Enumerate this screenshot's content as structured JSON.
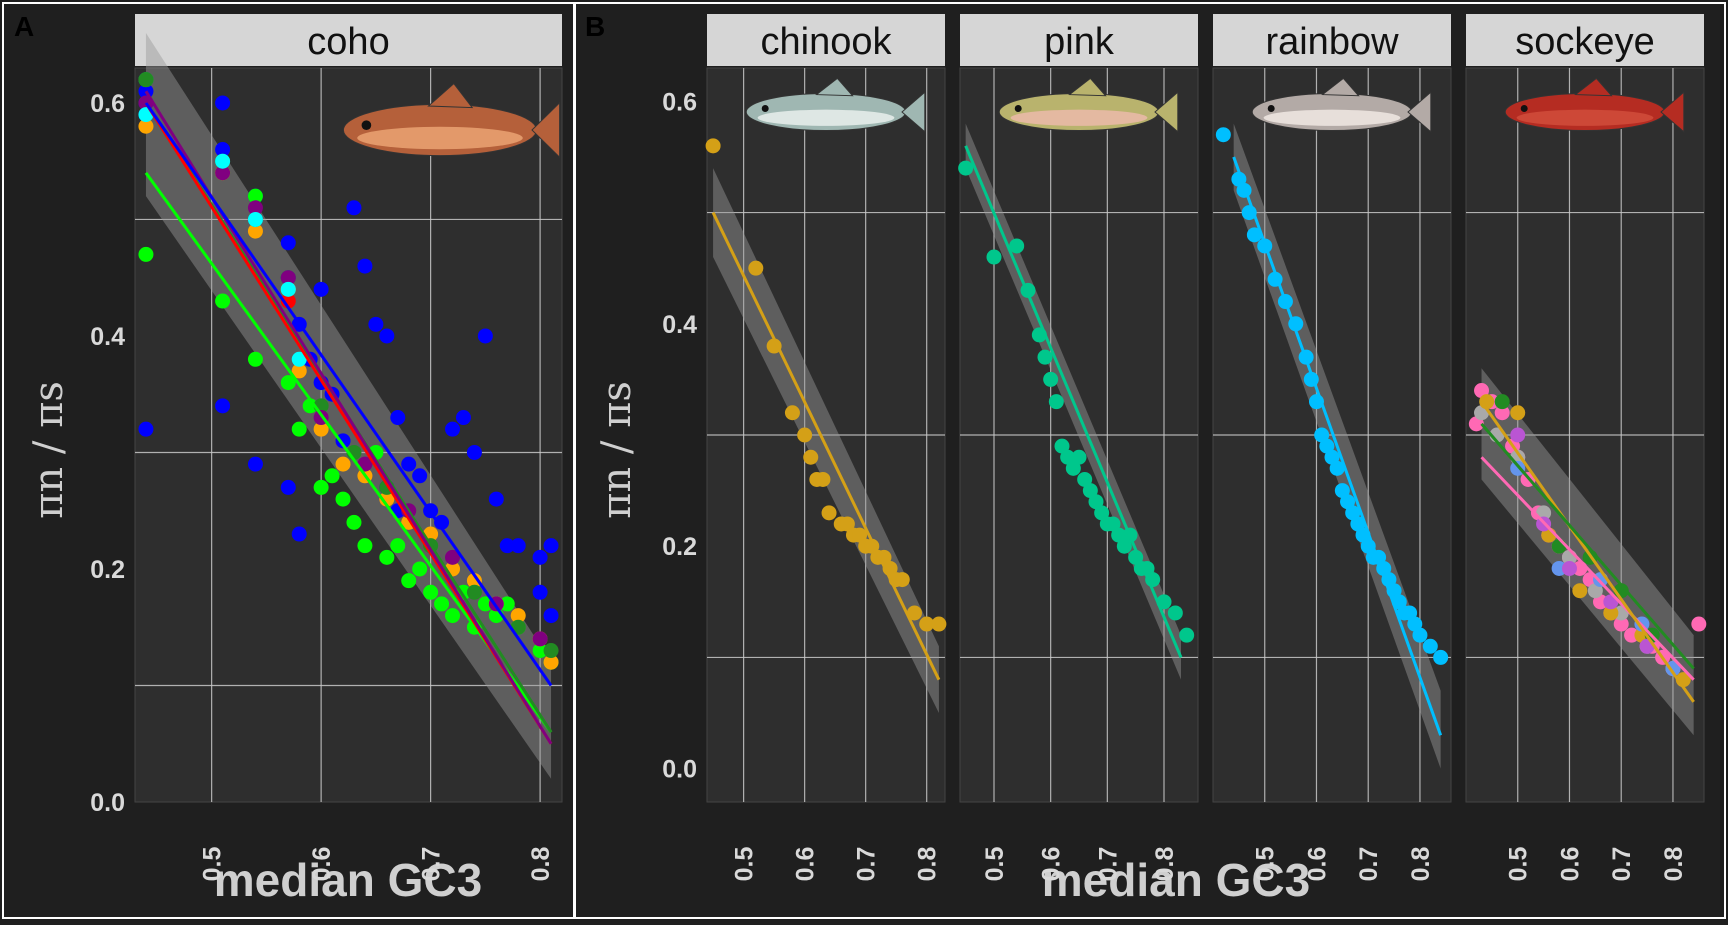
{
  "colors": {
    "background": "#2e2e2e",
    "outer": "#1f1f1f",
    "strip": "#d6d6d6",
    "grid": "#c8c8c8",
    "frame": "#ffffff"
  },
  "figure": {
    "panel_tags": [
      "A",
      "B"
    ],
    "x_title": "median GC3",
    "y_title": "πn / πs"
  },
  "chart_data": [
    {
      "type": "scatter",
      "panel": "A",
      "facet": "coho",
      "icon": "coho-salmon-icon",
      "xlabel": "median GC3",
      "ylabel": "πn / πs",
      "xlim": [
        0.43,
        0.82
      ],
      "ylim": [
        0.0,
        0.63
      ],
      "x_ticks": [
        0.5,
        0.6,
        0.7,
        0.8
      ],
      "y_ticks": [
        0.0,
        0.2,
        0.4,
        0.6
      ],
      "grid": true,
      "series": [
        {
          "color": "#0000ff",
          "x": [
            0.44,
            0.44,
            0.44,
            0.44,
            0.44,
            0.51,
            0.51,
            0.51,
            0.54,
            0.54,
            0.54,
            0.57,
            0.57,
            0.57,
            0.58,
            0.58,
            0.59,
            0.6,
            0.6,
            0.61,
            0.62,
            0.63,
            0.64,
            0.65,
            0.66,
            0.66,
            0.67,
            0.67,
            0.68,
            0.69,
            0.7,
            0.71,
            0.72,
            0.73,
            0.74,
            0.75,
            0.76,
            0.77,
            0.78,
            0.8,
            0.8,
            0.81,
            0.81
          ],
          "y": [
            0.32,
            0.59,
            0.6,
            0.61,
            0.62,
            0.34,
            0.6,
            0.56,
            0.29,
            0.5,
            0.52,
            0.27,
            0.45,
            0.48,
            0.23,
            0.41,
            0.38,
            0.36,
            0.44,
            0.35,
            0.31,
            0.51,
            0.46,
            0.41,
            0.4,
            0.27,
            0.33,
            0.25,
            0.29,
            0.28,
            0.25,
            0.24,
            0.32,
            0.33,
            0.3,
            0.4,
            0.26,
            0.22,
            0.22,
            0.21,
            0.18,
            0.16,
            0.22
          ]
        },
        {
          "color": "#00ff00",
          "x": [
            0.44,
            0.44,
            0.51,
            0.51,
            0.54,
            0.54,
            0.57,
            0.58,
            0.59,
            0.6,
            0.61,
            0.62,
            0.63,
            0.64,
            0.65,
            0.66,
            0.67,
            0.68,
            0.69,
            0.7,
            0.71,
            0.72,
            0.73,
            0.74,
            0.75,
            0.76,
            0.77,
            0.78,
            0.8,
            0.81
          ],
          "y": [
            0.47,
            0.62,
            0.43,
            0.54,
            0.38,
            0.52,
            0.36,
            0.32,
            0.34,
            0.27,
            0.28,
            0.26,
            0.24,
            0.22,
            0.3,
            0.21,
            0.22,
            0.19,
            0.2,
            0.18,
            0.17,
            0.16,
            0.18,
            0.15,
            0.17,
            0.16,
            0.17,
            0.15,
            0.13,
            0.12
          ]
        },
        {
          "color": "#ffa500",
          "x": [
            0.44,
            0.51,
            0.54,
            0.57,
            0.58,
            0.6,
            0.62,
            0.64,
            0.66,
            0.68,
            0.7,
            0.72,
            0.74,
            0.76,
            0.78,
            0.8,
            0.81
          ],
          "y": [
            0.58,
            0.54,
            0.49,
            0.44,
            0.37,
            0.32,
            0.29,
            0.28,
            0.26,
            0.24,
            0.23,
            0.2,
            0.19,
            0.17,
            0.16,
            0.14,
            0.12
          ]
        },
        {
          "color": "#ff0000",
          "x": [
            0.57
          ],
          "y": [
            0.43
          ]
        },
        {
          "color": "#228b22",
          "x": [
            0.44,
            0.51,
            0.54,
            0.57,
            0.6,
            0.63,
            0.66,
            0.7,
            0.74,
            0.78,
            0.81
          ],
          "y": [
            0.62,
            0.55,
            0.5,
            0.45,
            0.34,
            0.3,
            0.27,
            0.22,
            0.18,
            0.15,
            0.13
          ]
        },
        {
          "color": "#800080",
          "x": [
            0.44,
            0.51,
            0.54,
            0.57,
            0.6,
            0.64,
            0.68,
            0.72,
            0.76,
            0.8
          ],
          "y": [
            0.6,
            0.54,
            0.51,
            0.45,
            0.33,
            0.29,
            0.25,
            0.21,
            0.17,
            0.14
          ]
        },
        {
          "color": "#00ffff",
          "x": [
            0.44,
            0.51,
            0.54,
            0.57,
            0.58
          ],
          "y": [
            0.59,
            0.55,
            0.5,
            0.44,
            0.38
          ]
        }
      ],
      "fits": [
        {
          "color": "#00ff00",
          "x": [
            0.44,
            0.81
          ],
          "y": [
            0.54,
            0.06
          ]
        },
        {
          "color": "#228b22",
          "x": [
            0.44,
            0.81
          ],
          "y": [
            0.6,
            0.06
          ]
        },
        {
          "color": "#ff0000",
          "x": [
            0.44,
            0.81
          ],
          "y": [
            0.6,
            0.05
          ]
        },
        {
          "color": "#800080",
          "x": [
            0.44,
            0.81
          ],
          "y": [
            0.61,
            0.05
          ]
        },
        {
          "color": "#0000ff",
          "x": [
            0.44,
            0.81
          ],
          "y": [
            0.6,
            0.1
          ]
        }
      ],
      "ribbon": {
        "x": [
          0.44,
          0.81
        ],
        "upper": [
          0.66,
          0.12
        ],
        "lower": [
          0.52,
          0.02
        ]
      }
    },
    {
      "type": "scatter",
      "panel": "B",
      "facet": "chinook",
      "icon": "chinook-salmon-icon",
      "xlim": [
        0.44,
        0.83
      ],
      "ylim": [
        -0.03,
        0.63
      ],
      "x_ticks": [
        0.5,
        0.6,
        0.7,
        0.8
      ],
      "y_ticks": [
        0.0,
        0.2,
        0.4,
        0.6
      ],
      "grid": true,
      "series": [
        {
          "color": "#d4a017",
          "x": [
            0.45,
            0.52,
            0.55,
            0.58,
            0.6,
            0.61,
            0.62,
            0.63,
            0.64,
            0.66,
            0.67,
            0.68,
            0.69,
            0.7,
            0.71,
            0.72,
            0.73,
            0.74,
            0.75,
            0.76,
            0.78,
            0.8,
            0.82
          ],
          "y": [
            0.56,
            0.45,
            0.38,
            0.32,
            0.3,
            0.28,
            0.26,
            0.26,
            0.23,
            0.22,
            0.22,
            0.21,
            0.21,
            0.2,
            0.2,
            0.19,
            0.19,
            0.18,
            0.17,
            0.17,
            0.14,
            0.13,
            0.13
          ]
        }
      ],
      "fits": [
        {
          "color": "#d4a017",
          "x": [
            0.45,
            0.82
          ],
          "y": [
            0.5,
            0.08
          ]
        }
      ],
      "ribbon": {
        "x": [
          0.45,
          0.82
        ],
        "upper": [
          0.54,
          0.11
        ],
        "lower": [
          0.46,
          0.05
        ]
      }
    },
    {
      "type": "scatter",
      "panel": "B",
      "facet": "pink",
      "icon": "pink-salmon-icon",
      "xlim": [
        0.44,
        0.86
      ],
      "ylim": [
        -0.03,
        0.63
      ],
      "x_ticks": [
        0.5,
        0.6,
        0.7,
        0.8
      ],
      "y_ticks": [
        0.0,
        0.2,
        0.4,
        0.6
      ],
      "grid": true,
      "series": [
        {
          "color": "#00c78c",
          "x": [
            0.45,
            0.5,
            0.54,
            0.56,
            0.58,
            0.59,
            0.6,
            0.61,
            0.62,
            0.63,
            0.64,
            0.65,
            0.66,
            0.67,
            0.68,
            0.69,
            0.7,
            0.71,
            0.72,
            0.73,
            0.74,
            0.75,
            0.76,
            0.77,
            0.78,
            0.8,
            0.82,
            0.84
          ],
          "y": [
            0.54,
            0.46,
            0.47,
            0.43,
            0.39,
            0.37,
            0.35,
            0.33,
            0.29,
            0.28,
            0.27,
            0.28,
            0.26,
            0.25,
            0.24,
            0.23,
            0.22,
            0.22,
            0.21,
            0.2,
            0.21,
            0.19,
            0.18,
            0.18,
            0.17,
            0.15,
            0.14,
            0.12
          ]
        }
      ],
      "fits": [
        {
          "color": "#00c78c",
          "x": [
            0.45,
            0.83
          ],
          "y": [
            0.56,
            0.1
          ]
        }
      ],
      "ribbon": {
        "x": [
          0.45,
          0.83
        ],
        "upper": [
          0.58,
          0.12
        ],
        "lower": [
          0.54,
          0.08
        ]
      }
    },
    {
      "type": "scatter",
      "panel": "B",
      "facet": "rainbow",
      "icon": "rainbow-trout-icon",
      "xlim": [
        0.4,
        0.86
      ],
      "ylim": [
        -0.03,
        0.63
      ],
      "x_ticks": [
        0.5,
        0.6,
        0.7,
        0.8
      ],
      "y_ticks": [
        0.0,
        0.2,
        0.4,
        0.6
      ],
      "grid": true,
      "series": [
        {
          "color": "#00bfff",
          "x": [
            0.42,
            0.45,
            0.46,
            0.47,
            0.48,
            0.5,
            0.52,
            0.54,
            0.56,
            0.58,
            0.59,
            0.6,
            0.61,
            0.62,
            0.63,
            0.64,
            0.65,
            0.66,
            0.67,
            0.68,
            0.69,
            0.7,
            0.71,
            0.72,
            0.73,
            0.74,
            0.75,
            0.76,
            0.77,
            0.78,
            0.79,
            0.8,
            0.82,
            0.84
          ],
          "y": [
            0.57,
            0.53,
            0.52,
            0.5,
            0.48,
            0.47,
            0.44,
            0.42,
            0.4,
            0.37,
            0.35,
            0.33,
            0.3,
            0.29,
            0.28,
            0.27,
            0.25,
            0.24,
            0.23,
            0.22,
            0.21,
            0.2,
            0.19,
            0.19,
            0.18,
            0.17,
            0.16,
            0.15,
            0.14,
            0.14,
            0.13,
            0.12,
            0.11,
            0.1
          ]
        }
      ],
      "fits": [
        {
          "color": "#00bfff",
          "x": [
            0.44,
            0.84
          ],
          "y": [
            0.55,
            0.03
          ]
        }
      ],
      "ribbon": {
        "x": [
          0.44,
          0.84
        ],
        "upper": [
          0.58,
          0.07
        ],
        "lower": [
          0.52,
          0.0
        ]
      }
    },
    {
      "type": "scatter",
      "panel": "B",
      "facet": "sockeye",
      "icon": "sockeye-salmon-icon",
      "xlim": [
        0.4,
        0.86
      ],
      "ylim": [
        -0.03,
        0.63
      ],
      "x_ticks": [
        0.5,
        0.6,
        0.7,
        0.8
      ],
      "y_ticks": [
        0.0,
        0.2,
        0.4,
        0.6
      ],
      "grid": true,
      "series": [
        {
          "color": "#ff69b4",
          "x": [
            0.42,
            0.43,
            0.45,
            0.47,
            0.49,
            0.5,
            0.52,
            0.54,
            0.56,
            0.58,
            0.6,
            0.62,
            0.64,
            0.66,
            0.68,
            0.7,
            0.72,
            0.74,
            0.76,
            0.78,
            0.8,
            0.85
          ],
          "y": [
            0.31,
            0.34,
            0.33,
            0.32,
            0.29,
            0.28,
            0.26,
            0.23,
            0.21,
            0.2,
            0.19,
            0.18,
            0.17,
            0.15,
            0.14,
            0.13,
            0.12,
            0.12,
            0.11,
            0.1,
            0.09,
            0.13
          ]
        },
        {
          "color": "#a9a9a9",
          "x": [
            0.43,
            0.46,
            0.5,
            0.55,
            0.6,
            0.65,
            0.7,
            0.75,
            0.8
          ],
          "y": [
            0.32,
            0.3,
            0.28,
            0.23,
            0.19,
            0.16,
            0.14,
            0.11,
            0.09
          ]
        },
        {
          "color": "#d4a017",
          "x": [
            0.44,
            0.5,
            0.56,
            0.62,
            0.68,
            0.74,
            0.82
          ],
          "y": [
            0.33,
            0.32,
            0.21,
            0.16,
            0.14,
            0.12,
            0.08
          ]
        },
        {
          "color": "#228b22",
          "x": [
            0.47,
            0.58,
            0.64,
            0.7,
            0.76
          ],
          "y": [
            0.33,
            0.2,
            0.19,
            0.16,
            0.12
          ]
        },
        {
          "color": "#6495ed",
          "x": [
            0.5,
            0.58,
            0.66,
            0.74,
            0.8
          ],
          "y": [
            0.27,
            0.18,
            0.17,
            0.13,
            0.09
          ]
        },
        {
          "color": "#ba55d3",
          "x": [
            0.5,
            0.55,
            0.6,
            0.68,
            0.75
          ],
          "y": [
            0.3,
            0.22,
            0.18,
            0.15,
            0.11
          ]
        }
      ],
      "fits": [
        {
          "color": "#ff69b4",
          "x": [
            0.43,
            0.84
          ],
          "y": [
            0.28,
            0.08
          ]
        },
        {
          "color": "#d4a017",
          "x": [
            0.43,
            0.84
          ],
          "y": [
            0.33,
            0.06
          ]
        },
        {
          "color": "#228b22",
          "x": [
            0.43,
            0.84
          ],
          "y": [
            0.31,
            0.09
          ]
        }
      ],
      "ribbon": {
        "x": [
          0.43,
          0.84
        ],
        "upper": [
          0.36,
          0.12
        ],
        "lower": [
          0.26,
          0.03
        ]
      }
    }
  ]
}
